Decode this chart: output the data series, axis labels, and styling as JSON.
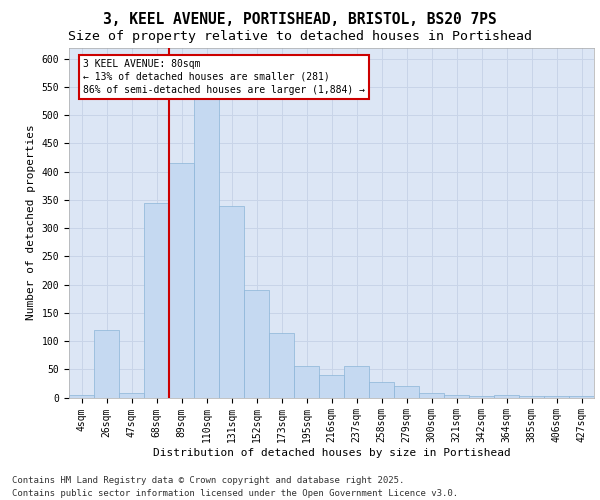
{
  "title_line1": "3, KEEL AVENUE, PORTISHEAD, BRISTOL, BS20 7PS",
  "title_line2": "Size of property relative to detached houses in Portishead",
  "xlabel": "Distribution of detached houses by size in Portishead",
  "ylabel": "Number of detached properties",
  "categories": [
    "4sqm",
    "26sqm",
    "47sqm",
    "68sqm",
    "89sqm",
    "110sqm",
    "131sqm",
    "152sqm",
    "173sqm",
    "195sqm",
    "216sqm",
    "237sqm",
    "258sqm",
    "279sqm",
    "300sqm",
    "321sqm",
    "342sqm",
    "364sqm",
    "385sqm",
    "406sqm",
    "427sqm"
  ],
  "values": [
    4,
    120,
    8,
    345,
    415,
    530,
    340,
    190,
    115,
    55,
    40,
    55,
    28,
    20,
    8,
    5,
    2,
    5,
    2,
    2,
    2
  ],
  "bar_color": "#c5d9f1",
  "bar_edge_color": "#8ab4d8",
  "grid_color": "#c8d4e8",
  "background_color": "#dce6f5",
  "vline_color": "#cc0000",
  "vline_pos": 3.5,
  "annotation_text": "3 KEEL AVENUE: 80sqm\n← 13% of detached houses are smaller (281)\n86% of semi-detached houses are larger (1,884) →",
  "annotation_box_color": "#ffffff",
  "annotation_box_edge": "#cc0000",
  "ylim": [
    0,
    620
  ],
  "yticks": [
    0,
    50,
    100,
    150,
    200,
    250,
    300,
    350,
    400,
    450,
    500,
    550,
    600
  ],
  "footer": "Contains HM Land Registry data © Crown copyright and database right 2025.\nContains public sector information licensed under the Open Government Licence v3.0.",
  "title_fontsize": 10.5,
  "subtitle_fontsize": 9.5,
  "axis_label_fontsize": 8,
  "tick_fontsize": 7,
  "footer_fontsize": 6.5
}
